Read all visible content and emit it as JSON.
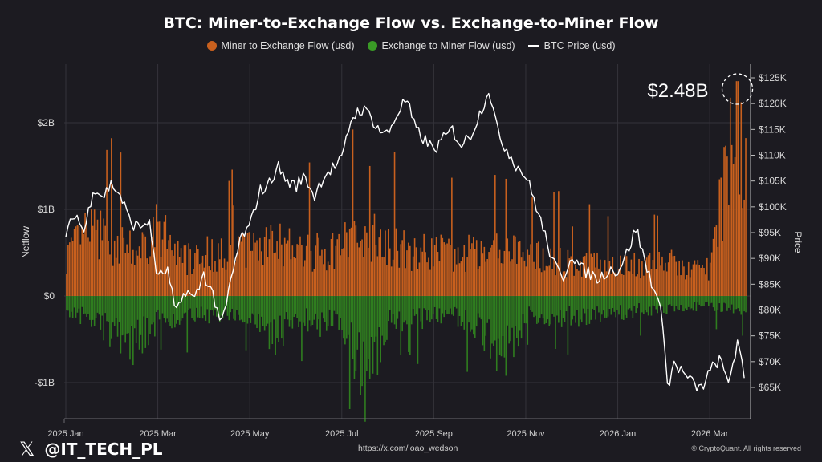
{
  "chart_data": {
    "type": "bar",
    "title": "BTC: Miner-to-Exchange Flow vs. Exchange-to-Miner Flow",
    "ylabel": "Netflow",
    "y2label": "Price",
    "ylim": [
      -1.45,
      2.65
    ],
    "y2lim": [
      58000,
      126000
    ],
    "y_ticks": [
      {
        "value": 2,
        "label": "$2B"
      },
      {
        "value": 1,
        "label": "$1B"
      },
      {
        "value": 0,
        "label": "$0"
      },
      {
        "value": -1,
        "label": "-$1B"
      }
    ],
    "y2_ticks": [
      {
        "value": 125000,
        "label": "$125K"
      },
      {
        "value": 120000,
        "label": "$120K"
      },
      {
        "value": 115000,
        "label": "$115K"
      },
      {
        "value": 110000,
        "label": "$110K"
      },
      {
        "value": 105000,
        "label": "$105K"
      },
      {
        "value": 100000,
        "label": "$100K"
      },
      {
        "value": 95000,
        "label": "$95K"
      },
      {
        "value": 90000,
        "label": "$90K"
      },
      {
        "value": 85000,
        "label": "$85K"
      },
      {
        "value": 80000,
        "label": "$80K"
      },
      {
        "value": 75000,
        "label": "$75K"
      },
      {
        "value": 70000,
        "label": "$70K"
      },
      {
        "value": 65000,
        "label": "$65K"
      }
    ],
    "x_ticks": [
      {
        "month": 0,
        "label": "2025 Jan"
      },
      {
        "month": 2,
        "label": "2025 Mar"
      },
      {
        "month": 4,
        "label": "2025 May"
      },
      {
        "month": 6,
        "label": "2025 Jul"
      },
      {
        "month": 8,
        "label": "2025 Sep"
      },
      {
        "month": 10,
        "label": "2025 Nov"
      },
      {
        "month": 12,
        "label": "2026 Jan"
      },
      {
        "month": 14,
        "label": "2026 Mar"
      }
    ],
    "grid": true,
    "legend_position": "top-center",
    "series": [
      {
        "name": "Miner to Exchange Flow (usd)",
        "color": "#c8601e",
        "kind": "bar",
        "points": [
          {
            "month": 0.0,
            "value": 0.55
          },
          {
            "month": 0.5,
            "value": 0.9
          },
          {
            "month": 1.0,
            "value": 0.75
          },
          {
            "month": 1.5,
            "value": 0.6
          },
          {
            "month": 2.0,
            "value": 0.95
          },
          {
            "month": 2.5,
            "value": 0.5
          },
          {
            "month": 3.0,
            "value": 0.62
          },
          {
            "month": 3.5,
            "value": 0.55
          },
          {
            "month": 4.0,
            "value": 0.7
          },
          {
            "month": 4.5,
            "value": 0.75
          },
          {
            "month": 5.0,
            "value": 0.65
          },
          {
            "month": 5.5,
            "value": 0.6
          },
          {
            "month": 6.0,
            "value": 0.72
          },
          {
            "month": 6.5,
            "value": 0.85
          },
          {
            "month": 7.0,
            "value": 0.78
          },
          {
            "month": 7.5,
            "value": 0.6
          },
          {
            "month": 8.0,
            "value": 0.62
          },
          {
            "month": 8.5,
            "value": 0.6
          },
          {
            "month": 9.0,
            "value": 0.65
          },
          {
            "month": 9.5,
            "value": 0.7
          },
          {
            "month": 10.0,
            "value": 0.55
          },
          {
            "month": 10.5,
            "value": 0.52
          },
          {
            "month": 11.0,
            "value": 0.45
          },
          {
            "month": 11.5,
            "value": 0.42
          },
          {
            "month": 12.0,
            "value": 0.45
          },
          {
            "month": 12.5,
            "value": 0.4
          },
          {
            "month": 13.0,
            "value": 0.5
          },
          {
            "month": 13.5,
            "value": 0.35
          },
          {
            "month": 14.0,
            "value": 0.4
          },
          {
            "month": 14.6,
            "value": 2.48
          },
          {
            "month": 14.8,
            "value": 1.5
          }
        ]
      },
      {
        "name": "Exchange to Miner Flow (usd)",
        "color": "#2f7d1f",
        "kind": "bar",
        "points": [
          {
            "month": 0.0,
            "value": -0.25
          },
          {
            "month": 0.5,
            "value": -0.3
          },
          {
            "month": 1.0,
            "value": -0.55
          },
          {
            "month": 1.5,
            "value": -0.7
          },
          {
            "month": 2.0,
            "value": -0.35
          },
          {
            "month": 2.5,
            "value": -0.3
          },
          {
            "month": 3.0,
            "value": -0.28
          },
          {
            "month": 3.5,
            "value": -0.25
          },
          {
            "month": 4.0,
            "value": -0.3
          },
          {
            "month": 4.5,
            "value": -0.65
          },
          {
            "month": 5.0,
            "value": -0.3
          },
          {
            "month": 5.5,
            "value": -0.4
          },
          {
            "month": 6.0,
            "value": -0.35
          },
          {
            "month": 6.5,
            "value": -1.25
          },
          {
            "month": 7.0,
            "value": -0.4
          },
          {
            "month": 7.5,
            "value": -0.35
          },
          {
            "month": 8.0,
            "value": -0.3
          },
          {
            "month": 8.5,
            "value": -0.3
          },
          {
            "month": 9.0,
            "value": -0.45
          },
          {
            "month": 9.5,
            "value": -0.9
          },
          {
            "month": 10.0,
            "value": -0.3
          },
          {
            "month": 10.5,
            "value": -0.3
          },
          {
            "month": 11.0,
            "value": -0.3
          },
          {
            "month": 11.5,
            "value": -0.3
          },
          {
            "month": 12.0,
            "value": -0.25
          },
          {
            "month": 12.5,
            "value": -0.2
          },
          {
            "month": 13.0,
            "value": -0.18
          },
          {
            "month": 13.5,
            "value": -0.15
          },
          {
            "month": 14.0,
            "value": -0.15
          },
          {
            "month": 14.5,
            "value": -0.2
          }
        ]
      },
      {
        "name": "BTC Price (usd)",
        "color": "#ffffff",
        "kind": "line",
        "axis": "right",
        "points": [
          {
            "month": 0.0,
            "value": 94000
          },
          {
            "month": 0.2,
            "value": 99000
          },
          {
            "month": 0.4,
            "value": 95000
          },
          {
            "month": 0.6,
            "value": 104000
          },
          {
            "month": 0.8,
            "value": 102000
          },
          {
            "month": 1.0,
            "value": 104500
          },
          {
            "month": 1.2,
            "value": 102000
          },
          {
            "month": 1.4,
            "value": 97000
          },
          {
            "month": 1.6,
            "value": 96000
          },
          {
            "month": 1.8,
            "value": 97500
          },
          {
            "month": 2.0,
            "value": 86000
          },
          {
            "month": 2.2,
            "value": 88000
          },
          {
            "month": 2.4,
            "value": 79000
          },
          {
            "month": 2.6,
            "value": 84000
          },
          {
            "month": 2.8,
            "value": 82000
          },
          {
            "month": 3.0,
            "value": 87000
          },
          {
            "month": 3.2,
            "value": 83000
          },
          {
            "month": 3.4,
            "value": 77000
          },
          {
            "month": 3.6,
            "value": 86000
          },
          {
            "month": 3.8,
            "value": 94000
          },
          {
            "month": 4.0,
            "value": 96000
          },
          {
            "month": 4.2,
            "value": 103000
          },
          {
            "month": 4.4,
            "value": 104000
          },
          {
            "month": 4.6,
            "value": 108000
          },
          {
            "month": 4.8,
            "value": 105000
          },
          {
            "month": 5.0,
            "value": 104000
          },
          {
            "month": 5.2,
            "value": 106000
          },
          {
            "month": 5.4,
            "value": 102000
          },
          {
            "month": 5.6,
            "value": 106000
          },
          {
            "month": 5.8,
            "value": 107500
          },
          {
            "month": 6.0,
            "value": 109000
          },
          {
            "month": 6.2,
            "value": 117000
          },
          {
            "month": 6.4,
            "value": 119000
          },
          {
            "month": 6.6,
            "value": 118000
          },
          {
            "month": 6.8,
            "value": 115000
          },
          {
            "month": 7.0,
            "value": 114000
          },
          {
            "month": 7.2,
            "value": 118000
          },
          {
            "month": 7.4,
            "value": 121000
          },
          {
            "month": 7.6,
            "value": 115000
          },
          {
            "month": 7.8,
            "value": 113000
          },
          {
            "month": 8.0,
            "value": 111000
          },
          {
            "month": 8.2,
            "value": 113000
          },
          {
            "month": 8.4,
            "value": 115000
          },
          {
            "month": 8.6,
            "value": 112000
          },
          {
            "month": 8.8,
            "value": 114000
          },
          {
            "month": 9.0,
            "value": 118000
          },
          {
            "month": 9.2,
            "value": 123000
          },
          {
            "month": 9.4,
            "value": 114000
          },
          {
            "month": 9.6,
            "value": 111000
          },
          {
            "month": 9.8,
            "value": 108000
          },
          {
            "month": 10.0,
            "value": 106000
          },
          {
            "month": 10.2,
            "value": 101000
          },
          {
            "month": 10.4,
            "value": 95000
          },
          {
            "month": 10.6,
            "value": 89000
          },
          {
            "month": 10.8,
            "value": 86000
          },
          {
            "month": 11.0,
            "value": 91000
          },
          {
            "month": 11.2,
            "value": 88000
          },
          {
            "month": 11.4,
            "value": 87000
          },
          {
            "month": 11.6,
            "value": 86000
          },
          {
            "month": 11.8,
            "value": 88000
          },
          {
            "month": 12.0,
            "value": 87500
          },
          {
            "month": 12.2,
            "value": 91000
          },
          {
            "month": 12.4,
            "value": 96000
          },
          {
            "month": 12.6,
            "value": 89000
          },
          {
            "month": 12.8,
            "value": 84000
          },
          {
            "month": 13.0,
            "value": 77000
          },
          {
            "month": 13.1,
            "value": 63000
          },
          {
            "month": 13.2,
            "value": 70000
          },
          {
            "month": 13.4,
            "value": 68000
          },
          {
            "month": 13.6,
            "value": 66000
          },
          {
            "month": 13.8,
            "value": 64500
          },
          {
            "month": 14.0,
            "value": 68000
          },
          {
            "month": 14.2,
            "value": 70500
          },
          {
            "month": 14.4,
            "value": 66000
          },
          {
            "month": 14.6,
            "value": 73500
          },
          {
            "month": 14.75,
            "value": 67000
          }
        ]
      }
    ],
    "annotation": {
      "label": "$2.48B",
      "month": 14.6,
      "value": 2.48
    }
  },
  "legend": {
    "miner_to_exchange": "Miner to Exchange Flow (usd)",
    "exchange_to_miner": "Exchange to Miner Flow (usd)",
    "btc_price": "BTC Price (usd)"
  },
  "footer": {
    "handle": "@IT_TECH_PL",
    "x_logo": "𝕏",
    "link": "https://x.com/joao_wedson",
    "copyright": "© CryptoQuant. All rights reserved"
  },
  "colors": {
    "background": "#1c1b21",
    "grid": "#34333a",
    "miner_to_exchange": "#c8601e",
    "exchange_to_miner": "#2f7d1f",
    "price": "#ffffff"
  }
}
